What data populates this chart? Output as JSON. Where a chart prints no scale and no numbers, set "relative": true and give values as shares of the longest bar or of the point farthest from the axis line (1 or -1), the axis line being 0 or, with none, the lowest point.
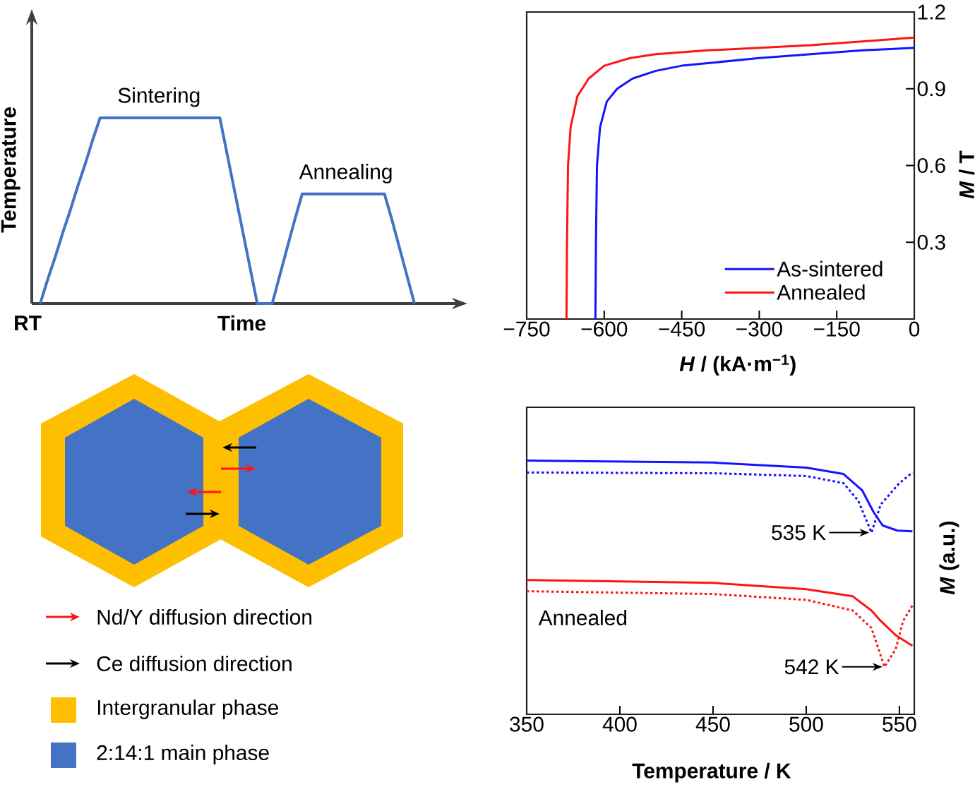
{
  "chart_data": [
    {
      "type": "line",
      "relative": true,
      "xlabel": "Time",
      "ylabel": "Temperature",
      "color": "#4472c4",
      "categories": [
        null,
        null,
        null,
        null,
        null,
        null,
        null,
        null,
        null,
        null,
        null,
        null,
        null,
        null,
        null,
        null,
        null,
        null,
        null,
        null,
        null,
        null,
        null,
        null,
        null,
        null,
        null,
        null,
        null,
        null,
        null,
        null,
        null,
        null,
        null,
        null,
        null,
        null,
        null,
        null,
        null,
        null,
        null,
        null,
        null,
        null,
        null,
        null,
        null,
        null,
        null
      ],
      "values": [
        0,
        0.13,
        0.25,
        0.38,
        0.5,
        0.63,
        0.75,
        0.88,
        1,
        1,
        1,
        1,
        1,
        1,
        1,
        1,
        1,
        1,
        1,
        1,
        1,
        1,
        1,
        1,
        1,
        0.8,
        0.6,
        0.4,
        0.2,
        0,
        0,
        0,
        0.15,
        0.3,
        0.45,
        0.59,
        0.59,
        0.59,
        0.59,
        0.59,
        0.59,
        0.59,
        0.59,
        0.59,
        0.59,
        0.59,
        0.59,
        0.45,
        0.3,
        0.15,
        0
      ],
      "annotations": [
        "RT",
        "Sintering",
        "Annealing"
      ]
    },
    {
      "type": "line",
      "xlabel": "*H* / (kA·m$^{−1}$)",
      "ylabel": "*M* / T",
      "xlim": [
        -750,
        0
      ],
      "ylim": [
        0,
        1.2
      ],
      "xticks": [
        {
          "value": -750,
          "label": "−750"
        },
        {
          "value": -600,
          "label": "−600"
        },
        {
          "value": -450,
          "label": "−450"
        },
        {
          "value": -300,
          "label": "−300"
        },
        {
          "value": -150,
          "label": "−150"
        },
        0
      ],
      "yticks": [
        0.3,
        0.6,
        0.9,
        1.2
      ],
      "legend": "bottom right",
      "series": [
        {
          "name": "As-sintered",
          "color": "#1414ff",
          "x": [
            -617,
            -616,
            -614,
            -608,
            -595,
            -575,
            -545,
            -500,
            -450,
            -400,
            -300,
            -200,
            -100,
            0
          ],
          "values": [
            0,
            0.3,
            0.6,
            0.75,
            0.85,
            0.9,
            0.94,
            0.97,
            0.99,
            1.0,
            1.02,
            1.035,
            1.05,
            1.06
          ]
        },
        {
          "name": "Annealed",
          "color": "#ff1414",
          "x": [
            -673,
            -672,
            -670,
            -665,
            -652,
            -630,
            -600,
            -550,
            -500,
            -400,
            -300,
            -200,
            -100,
            0
          ],
          "values": [
            0,
            0.3,
            0.6,
            0.75,
            0.87,
            0.94,
            0.99,
            1.02,
            1.035,
            1.05,
            1.06,
            1.07,
            1.085,
            1.1
          ]
        }
      ]
    },
    {
      "type": "line",
      "relative": true,
      "xlabel": "Temperature / K",
      "ylabel": "*M* (a.u.)",
      "xlim": [
        350,
        558
      ],
      "xticks": [
        350,
        400,
        450,
        500,
        550
      ],
      "series": [
        {
          "color": "#1414ff",
          "line_style": "solid",
          "x": [
            350,
            450,
            500,
            520,
            530,
            536,
            541,
            549,
            557
          ],
          "values": [
            1.0,
            0.992,
            0.972,
            0.947,
            0.883,
            0.799,
            0.744,
            0.724,
            0.721
          ]
        },
        {
          "color": "#1414ff",
          "line_style": "dotted",
          "x": [
            350,
            450,
            500,
            520,
            528,
            535,
            540,
            550,
            557
          ],
          "values": [
            0.953,
            0.95,
            0.939,
            0.911,
            0.841,
            0.716,
            0.827,
            0.911,
            0.953
          ]
        },
        {
          "color": "#ff1414",
          "line_style": "solid",
          "x": [
            350,
            450,
            500,
            525,
            535,
            540,
            548,
            557
          ],
          "values": [
            0.529,
            0.518,
            0.493,
            0.465,
            0.409,
            0.368,
            0.312,
            0.27
          ]
        },
        {
          "color": "#ff1414",
          "line_style": "dotted",
          "x": [
            350,
            450,
            500,
            525,
            535,
            542,
            548,
            552,
            557
          ],
          "values": [
            0.485,
            0.474,
            0.451,
            0.409,
            0.34,
            0.187,
            0.256,
            0.368,
            0.429
          ]
        }
      ],
      "annotations": [
        {
          "text": "535 K",
          "x": 535,
          "y": 0.716
        },
        {
          "text": "542 K",
          "x": 542,
          "y": 0.187
        },
        "Annealed"
      ]
    },
    {
      "type": "other",
      "annotations": [
        "Nd/Y diffusion direction",
        "Ce diffusion direction",
        "Intergranular phase",
        "2:14:1 main phase"
      ]
    }
  ]
}
